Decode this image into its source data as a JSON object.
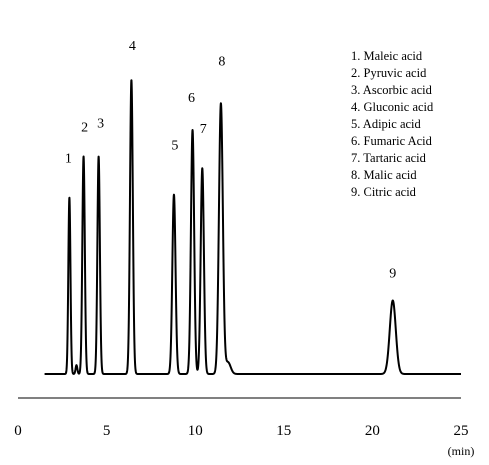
{
  "chart_data": {
    "type": "line",
    "title": "",
    "xlabel": "",
    "xunit": "(min)",
    "ylabel": "",
    "xlim": [
      0,
      25
    ],
    "xticks": [
      0,
      5,
      10,
      15,
      20,
      25
    ],
    "grid": false,
    "legend_position": "top-right",
    "baseline": 0,
    "series": [
      {
        "color": "#000000",
        "peaks": [
          {
            "label": "1",
            "rt": 2.9,
            "height": 0.6,
            "width": 0.06
          },
          {
            "label": "2",
            "rt": 3.7,
            "height": 0.74,
            "width": 0.07
          },
          {
            "label": "3",
            "rt": 4.55,
            "height": 0.74,
            "width": 0.07
          },
          {
            "label": "4",
            "rt": 6.4,
            "height": 1.0,
            "width": 0.08
          },
          {
            "label": "5",
            "rt": 8.8,
            "height": 0.61,
            "width": 0.09
          },
          {
            "label": "6",
            "rt": 9.85,
            "height": 0.83,
            "width": 0.09
          },
          {
            "label": "7",
            "rt": 10.4,
            "height": 0.7,
            "width": 0.09
          },
          {
            "label": "8",
            "rt": 11.45,
            "height": 0.92,
            "width": 0.11
          },
          {
            "label": "9",
            "rt": 21.15,
            "height": 0.25,
            "width": 0.17
          }
        ],
        "minor_peaks": [
          {
            "rt": 3.3,
            "height": 0.03,
            "width": 0.05
          },
          {
            "rt": 11.85,
            "height": 0.04,
            "width": 0.15
          }
        ]
      }
    ],
    "legend": [
      "1. Maleic acid",
      "2. Pyruvic acid",
      "3. Ascorbic acid",
      "4. Gluconic acid",
      "5. Adipic acid",
      "6. Fumaric Acid",
      "7. Tartaric acid",
      "8. Malic acid",
      "9. Citric acid"
    ]
  }
}
